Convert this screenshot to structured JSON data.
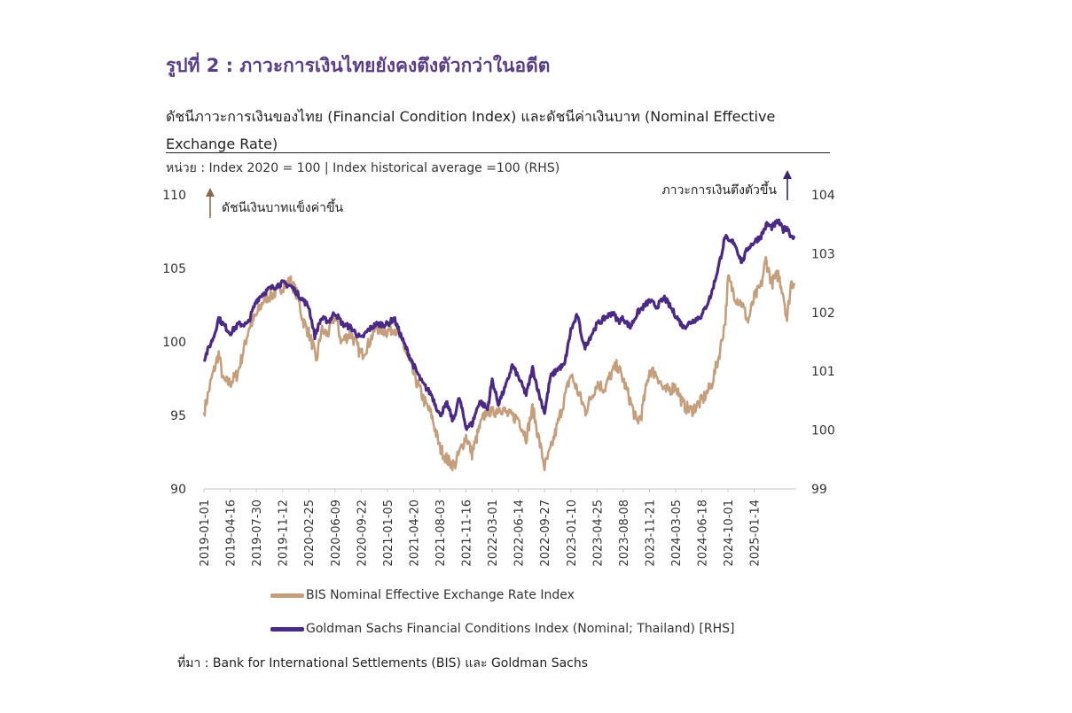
{
  "figure_title": "รูปที่ 2 : ภาวะการเงินไทยยังคงตึงตัวกว่าในอดีต",
  "subtitle": "ดัชนีภาวะการเงินของไทย (Financial Condition Index) และดัชนีค่าเงินบาท (Nominal Effective Exchange Rate)",
  "unit_note": "หน่วย : Index 2020 = 100 | Index historical average =100 (RHS)",
  "source_note": "ที่มา : Bank for International Settlements (BIS) และ Goldman Sachs",
  "colors": {
    "neer": "#c59f7b",
    "fci": "#4b2a86",
    "title": "#5a3e85",
    "axis": "#c8c8c8"
  },
  "chart_data": {
    "type": "line",
    "annotations": {
      "left": "ดัชนีเงินบาทแข็งค่าขึ้น",
      "right": "ภาวะการเงินตึงตัวขึ้น"
    },
    "x_ticks": [
      "2019-01-01",
      "2019-04-16",
      "2019-07-30",
      "2019-11-12",
      "2020-02-25",
      "2020-06-09",
      "2020-09-22",
      "2021-01-05",
      "2021-04-20",
      "2021-08-03",
      "2021-11-16",
      "2022-03-01",
      "2022-06-14",
      "2022-09-27",
      "2023-01-10",
      "2023-04-25",
      "2023-08-08",
      "2023-11-21",
      "2024-03-05",
      "2024-06-18",
      "2024-10-01",
      "2025-01-14"
    ],
    "x_range": [
      "2019-01-01",
      "2025-07-01"
    ],
    "y_left": {
      "range": [
        90,
        110
      ],
      "ticks": [
        90,
        95,
        100,
        105,
        110
      ]
    },
    "y_right": {
      "range": [
        99,
        104
      ],
      "ticks": [
        99,
        100,
        101,
        102,
        103,
        104
      ]
    },
    "legend_placement": "bottom",
    "grid": false,
    "series": [
      {
        "name": "BIS Nominal Effective Exchange Rate Index",
        "axis": "left",
        "points": [
          [
            "2019-01-01",
            95.2
          ],
          [
            "2019-02-01",
            97.5
          ],
          [
            "2019-03-01",
            99.2
          ],
          [
            "2019-03-20",
            97.3
          ],
          [
            "2019-04-16",
            97.2
          ],
          [
            "2019-05-15",
            97.8
          ],
          [
            "2019-06-10",
            99.5
          ],
          [
            "2019-07-01",
            101.0
          ],
          [
            "2019-07-30",
            101.8
          ],
          [
            "2019-09-01",
            103.0
          ],
          [
            "2019-10-01",
            103.2
          ],
          [
            "2019-11-12",
            103.8
          ],
          [
            "2019-12-15",
            104.1
          ],
          [
            "2020-01-10",
            103.2
          ],
          [
            "2020-02-01",
            101.5
          ],
          [
            "2020-02-25",
            100.6
          ],
          [
            "2020-03-15",
            99.6
          ],
          [
            "2020-03-25",
            98.5
          ],
          [
            "2020-04-15",
            100.8
          ],
          [
            "2020-05-10",
            100.5
          ],
          [
            "2020-06-09",
            101.8
          ],
          [
            "2020-07-05",
            100.0
          ],
          [
            "2020-08-10",
            100.6
          ],
          [
            "2020-09-22",
            99.1
          ],
          [
            "2020-10-20",
            99.8
          ],
          [
            "2020-11-20",
            101.0
          ],
          [
            "2021-01-05",
            100.7
          ],
          [
            "2021-02-01",
            101.0
          ],
          [
            "2021-03-01",
            100.2
          ],
          [
            "2021-04-20",
            97.8
          ],
          [
            "2021-06-01",
            96.0
          ],
          [
            "2021-07-01",
            95.0
          ],
          [
            "2021-08-03",
            92.8
          ],
          [
            "2021-09-05",
            91.9
          ],
          [
            "2021-10-01",
            91.6
          ],
          [
            "2021-11-16",
            93.6
          ],
          [
            "2021-12-10",
            92.4
          ],
          [
            "2022-01-10",
            94.2
          ],
          [
            "2022-02-10",
            95.5
          ],
          [
            "2022-03-01",
            95.1
          ],
          [
            "2022-04-01",
            95.6
          ],
          [
            "2022-05-05",
            95.0
          ],
          [
            "2022-06-14",
            94.8
          ],
          [
            "2022-07-15",
            93.5
          ],
          [
            "2022-08-10",
            95.5
          ],
          [
            "2022-09-05",
            93.3
          ],
          [
            "2022-09-27",
            91.5
          ],
          [
            "2022-10-20",
            92.6
          ],
          [
            "2022-11-20",
            94.5
          ],
          [
            "2023-01-10",
            97.8
          ],
          [
            "2023-02-05",
            96.7
          ],
          [
            "2023-03-10",
            95.3
          ],
          [
            "2023-04-25",
            97.2
          ],
          [
            "2023-05-25",
            96.8
          ],
          [
            "2023-06-20",
            97.8
          ],
          [
            "2023-07-15",
            98.4
          ],
          [
            "2023-08-08",
            97.4
          ],
          [
            "2023-09-05",
            96.0
          ],
          [
            "2023-10-01",
            94.5
          ],
          [
            "2023-10-20",
            95.1
          ],
          [
            "2023-11-21",
            98.1
          ],
          [
            "2023-12-20",
            97.8
          ],
          [
            "2024-01-20",
            96.6
          ],
          [
            "2024-03-05",
            97.0
          ],
          [
            "2024-04-05",
            95.7
          ],
          [
            "2024-05-05",
            95.3
          ],
          [
            "2024-06-18",
            96.0
          ],
          [
            "2024-07-25",
            97.0
          ],
          [
            "2024-08-25",
            99.0
          ],
          [
            "2024-09-20",
            101.5
          ],
          [
            "2024-10-01",
            104.3
          ],
          [
            "2024-11-01",
            103.0
          ],
          [
            "2024-11-25",
            102.6
          ],
          [
            "2024-12-20",
            101.4
          ],
          [
            "2025-01-14",
            103.0
          ],
          [
            "2025-02-10",
            103.8
          ],
          [
            "2025-03-01",
            105.6
          ],
          [
            "2025-03-25",
            104.0
          ],
          [
            "2025-04-20",
            104.6
          ],
          [
            "2025-05-10",
            103.3
          ],
          [
            "2025-05-25",
            101.5
          ],
          [
            "2025-06-10",
            104.0
          ],
          [
            "2025-06-25",
            104.0
          ]
        ]
      },
      {
        "name": "Goldman Sachs Financial Conditions Index (Nominal; Thailand) [RHS]",
        "axis": "right",
        "points": [
          [
            "2019-01-01",
            101.2
          ],
          [
            "2019-02-10",
            101.6
          ],
          [
            "2019-03-01",
            101.9
          ],
          [
            "2019-04-16",
            101.65
          ],
          [
            "2019-05-20",
            101.8
          ],
          [
            "2019-06-25",
            101.8
          ],
          [
            "2019-07-30",
            102.2
          ],
          [
            "2019-08-20",
            102.3
          ],
          [
            "2019-09-20",
            102.4
          ],
          [
            "2019-11-12",
            102.5
          ],
          [
            "2019-12-15",
            102.45
          ],
          [
            "2020-01-15",
            102.3
          ],
          [
            "2020-02-25",
            102.1
          ],
          [
            "2020-03-20",
            101.6
          ],
          [
            "2020-04-15",
            101.9
          ],
          [
            "2020-05-15",
            101.85
          ],
          [
            "2020-06-09",
            102.0
          ],
          [
            "2020-07-10",
            101.8
          ],
          [
            "2020-08-10",
            101.75
          ],
          [
            "2020-09-22",
            101.55
          ],
          [
            "2020-10-20",
            101.7
          ],
          [
            "2020-11-20",
            101.8
          ],
          [
            "2021-01-05",
            101.8
          ],
          [
            "2021-02-01",
            101.9
          ],
          [
            "2021-03-05",
            101.55
          ],
          [
            "2021-04-20",
            101.1
          ],
          [
            "2021-05-25",
            100.8
          ],
          [
            "2021-07-01",
            100.6
          ],
          [
            "2021-08-03",
            100.25
          ],
          [
            "2021-09-01",
            100.45
          ],
          [
            "2021-09-25",
            100.15
          ],
          [
            "2021-10-20",
            100.55
          ],
          [
            "2021-11-16",
            100.05
          ],
          [
            "2021-12-10",
            100.1
          ],
          [
            "2022-01-10",
            100.5
          ],
          [
            "2022-02-10",
            100.35
          ],
          [
            "2022-03-01",
            100.85
          ],
          [
            "2022-03-25",
            100.45
          ],
          [
            "2022-04-25",
            100.75
          ],
          [
            "2022-05-20",
            101.1
          ],
          [
            "2022-06-14",
            100.9
          ],
          [
            "2022-07-15",
            100.6
          ],
          [
            "2022-08-10",
            101.05
          ],
          [
            "2022-09-05",
            100.6
          ],
          [
            "2022-09-27",
            100.3
          ],
          [
            "2022-10-20",
            100.9
          ],
          [
            "2022-11-20",
            101.05
          ],
          [
            "2022-12-15",
            101.1
          ],
          [
            "2023-01-10",
            101.7
          ],
          [
            "2023-02-05",
            101.95
          ],
          [
            "2023-03-05",
            101.4
          ],
          [
            "2023-04-25",
            101.8
          ],
          [
            "2023-05-25",
            101.9
          ],
          [
            "2023-06-25",
            102.0
          ],
          [
            "2023-07-20",
            101.85
          ],
          [
            "2023-08-08",
            101.9
          ],
          [
            "2023-09-05",
            101.75
          ],
          [
            "2023-10-05",
            102.0
          ],
          [
            "2023-11-21",
            102.2
          ],
          [
            "2023-12-20",
            102.1
          ],
          [
            "2024-01-20",
            102.25
          ],
          [
            "2024-03-05",
            101.95
          ],
          [
            "2024-04-05",
            101.75
          ],
          [
            "2024-05-10",
            101.85
          ],
          [
            "2024-06-18",
            101.95
          ],
          [
            "2024-07-25",
            102.3
          ],
          [
            "2024-08-25",
            102.8
          ],
          [
            "2024-09-20",
            103.3
          ],
          [
            "2024-10-01",
            103.2
          ],
          [
            "2024-10-25",
            103.2
          ],
          [
            "2024-11-25",
            102.85
          ],
          [
            "2024-12-20",
            103.1
          ],
          [
            "2025-01-14",
            103.2
          ],
          [
            "2025-02-10",
            103.3
          ],
          [
            "2025-03-05",
            103.5
          ],
          [
            "2025-03-25",
            103.45
          ],
          [
            "2025-04-20",
            103.55
          ],
          [
            "2025-05-10",
            103.4
          ],
          [
            "2025-05-25",
            103.45
          ],
          [
            "2025-06-10",
            103.3
          ],
          [
            "2025-06-25",
            103.3
          ]
        ]
      }
    ]
  }
}
